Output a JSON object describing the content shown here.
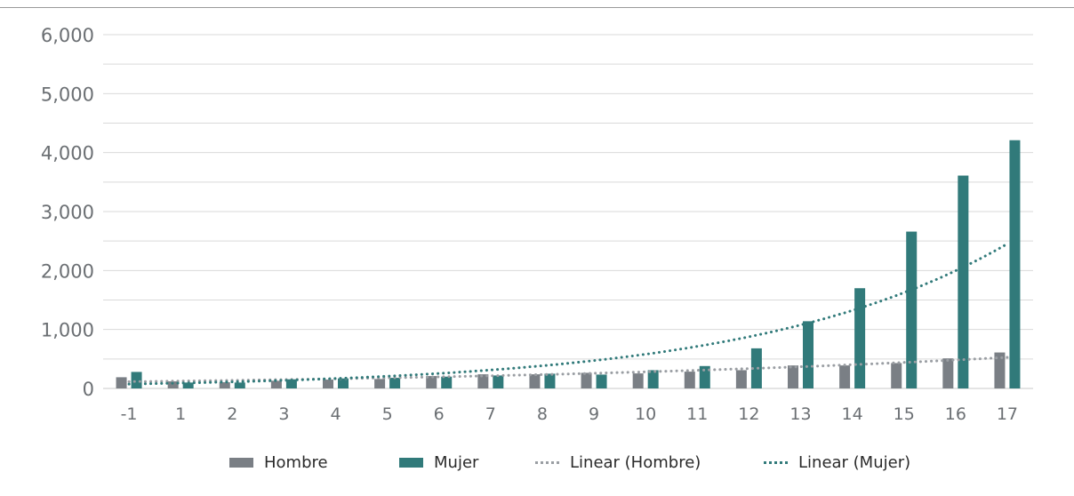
{
  "chart_data": {
    "type": "bar",
    "title": "",
    "xlabel": "",
    "ylabel": "",
    "categories": [
      "-1",
      "1",
      "2",
      "3",
      "4",
      "5",
      "6",
      "7",
      "8",
      "9",
      "10",
      "11",
      "12",
      "13",
      "14",
      "15",
      "16",
      "17"
    ],
    "ylim": [
      0,
      6000
    ],
    "yticks": [
      "0",
      "1,000",
      "2,000",
      "3,000",
      "4,000",
      "5,000",
      "6,000"
    ],
    "grid": true,
    "legend_position": "bottom",
    "series": [
      {
        "name": "Hombre",
        "kind": "bar",
        "color": "#7a7f85",
        "values": [
          190,
          120,
          105,
          130,
          150,
          160,
          210,
          240,
          240,
          265,
          255,
          285,
          310,
          390,
          390,
          430,
          510,
          610
        ]
      },
      {
        "name": "Mujer",
        "kind": "bar",
        "color": "#317a7a",
        "values": [
          280,
          100,
          100,
          155,
          170,
          180,
          200,
          220,
          250,
          235,
          310,
          380,
          680,
          1140,
          1700,
          2660,
          3610,
          4210
        ]
      },
      {
        "name": "Linear (Hombre)",
        "kind": "trendline",
        "color": "#9a9ea3",
        "trend_of": "Hombre"
      },
      {
        "name": "Linear (Mujer)",
        "kind": "trendline",
        "color": "#317a7a",
        "trend_of": "Mujer"
      }
    ]
  }
}
